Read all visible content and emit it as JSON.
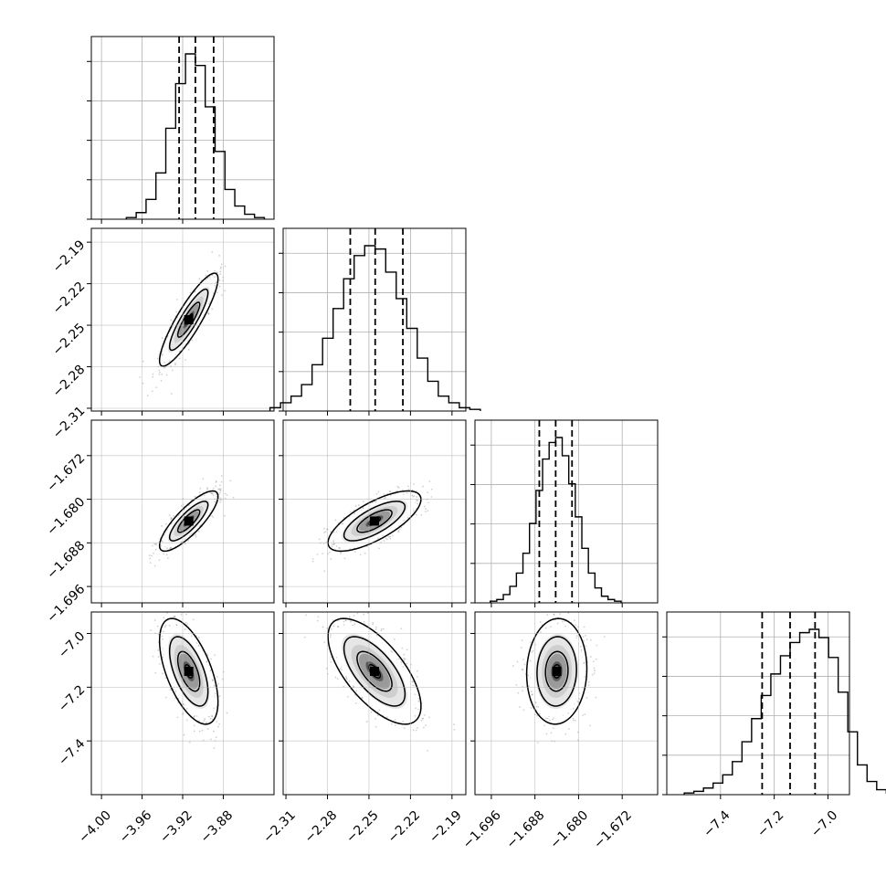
{
  "chart_data": {
    "type": "corner",
    "colors": {
      "line": "#000000",
      "grid": "#b0b0b0",
      "scatter": "#000000",
      "background": "#ffffff"
    },
    "grid": true,
    "parameters": [
      {
        "range": [
          -4.01,
          -3.83
        ],
        "ticks": [
          -4.0,
          -3.96,
          -3.92,
          -3.88
        ],
        "tick_labels": [
          "−4.00",
          "−3.96",
          "−3.92",
          "−3.88"
        ],
        "quantiles": [
          -3.9235,
          -3.9075,
          -3.8895
        ]
      },
      {
        "range": [
          -2.312,
          -2.18
        ],
        "ticks": [
          -2.31,
          -2.28,
          -2.25,
          -2.22,
          -2.19
        ],
        "tick_labels": [
          "−2.31",
          "−2.28",
          "−2.25",
          "−2.22",
          "−2.19"
        ],
        "quantiles": [
          -2.2635,
          -2.2455,
          -2.2255
        ]
      },
      {
        "range": [
          -1.699,
          -1.6655
        ],
        "ticks": [
          -1.696,
          -1.688,
          -1.68,
          -1.672
        ],
        "tick_labels": [
          "−1.696",
          "−1.688",
          "−1.680",
          "−1.672"
        ],
        "quantiles": [
          -1.6872,
          -1.6842,
          -1.6812
        ]
      },
      {
        "range": [
          -7.6,
          -6.92
        ],
        "ticks": [
          -7.4,
          -7.2,
          -7.0
        ],
        "tick_labels": [
          "−7.4",
          "−7.2",
          "−7.0"
        ],
        "quantiles": [
          -7.245,
          -7.141,
          -7.048
        ]
      }
    ],
    "histograms": [
      [
        0.01,
        0.04,
        0.12,
        0.28,
        0.55,
        0.82,
        1.0,
        0.93,
        0.68,
        0.41,
        0.18,
        0.08,
        0.03,
        0.01
      ],
      [
        0.02,
        0.05,
        0.09,
        0.16,
        0.28,
        0.44,
        0.62,
        0.8,
        0.94,
        1.0,
        0.98,
        0.84,
        0.68,
        0.5,
        0.32,
        0.18,
        0.09,
        0.05,
        0.02,
        0.01
      ],
      [
        0.01,
        0.02,
        0.05,
        0.1,
        0.18,
        0.3,
        0.48,
        0.68,
        0.87,
        0.97,
        1.0,
        0.89,
        0.72,
        0.52,
        0.33,
        0.18,
        0.09,
        0.04,
        0.02,
        0.01
      ],
      [
        0.01,
        0.02,
        0.04,
        0.07,
        0.12,
        0.2,
        0.32,
        0.46,
        0.6,
        0.73,
        0.84,
        0.92,
        0.98,
        1.0,
        0.95,
        0.83,
        0.62,
        0.38,
        0.18,
        0.08,
        0.03,
        0.01
      ]
    ],
    "pairs": [
      {
        "row": 1,
        "col": 0,
        "center": [
          -3.914,
          -2.246
        ],
        "sigma": [
          0.012,
          0.014
        ],
        "rho": 0.88
      },
      {
        "row": 2,
        "col": 0,
        "center": [
          -3.914,
          -1.684
        ],
        "sigma": [
          0.012,
          0.0023
        ],
        "rho": 0.82
      },
      {
        "row": 2,
        "col": 1,
        "center": [
          -2.246,
          -1.684
        ],
        "sigma": [
          0.014,
          0.0023
        ],
        "rho": 0.72
      },
      {
        "row": 3,
        "col": 0,
        "center": [
          -3.914,
          -7.141
        ],
        "sigma": [
          0.012,
          0.082
        ],
        "rho": -0.58
      },
      {
        "row": 3,
        "col": 1,
        "center": [
          -2.246,
          -7.141
        ],
        "sigma": [
          0.014,
          0.082
        ],
        "rho": -0.66
      },
      {
        "row": 3,
        "col": 2,
        "center": [
          -1.684,
          -7.141
        ],
        "sigma": [
          0.0023,
          0.082
        ],
        "rho": 0.05
      }
    ]
  }
}
